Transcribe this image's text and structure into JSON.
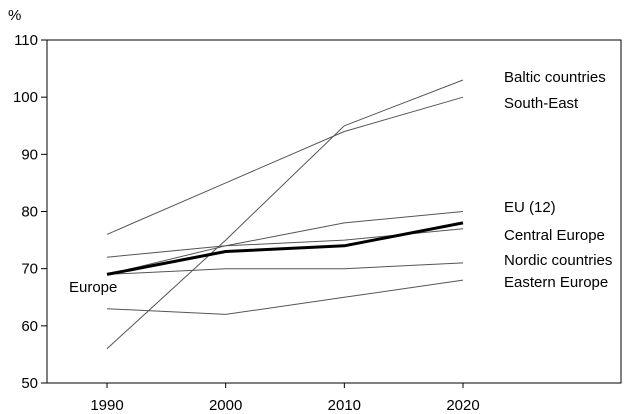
{
  "chart_data": {
    "type": "line",
    "title": "",
    "xlabel": "",
    "ylabel": "%",
    "x": [
      1990,
      2000,
      2010,
      2020
    ],
    "xlim": [
      1990,
      2020
    ],
    "ylim": [
      50,
      110
    ],
    "yticks": [
      50,
      60,
      70,
      80,
      90,
      100,
      110
    ],
    "grid": false,
    "series": [
      {
        "name": "Baltic countries",
        "values": [
          56,
          75,
          95,
          103
        ],
        "emphasis": false
      },
      {
        "name": "South-East",
        "values": [
          76,
          85,
          94,
          100
        ],
        "emphasis": false
      },
      {
        "name": "EU (12)",
        "values": [
          72,
          74,
          78,
          80
        ],
        "emphasis": false
      },
      {
        "name": "Central Europe",
        "values": [
          69,
          74,
          75,
          77
        ],
        "emphasis": false
      },
      {
        "name": "Nordic countries",
        "values": [
          69,
          70,
          70,
          71
        ],
        "emphasis": false
      },
      {
        "name": "Eastern Europe",
        "values": [
          63,
          62,
          65,
          68
        ],
        "emphasis": false
      },
      {
        "name": "Europe",
        "values": [
          69,
          73,
          74,
          78
        ],
        "emphasis": true
      }
    ],
    "line_color": "#555555",
    "emphasis_color": "#000000"
  }
}
